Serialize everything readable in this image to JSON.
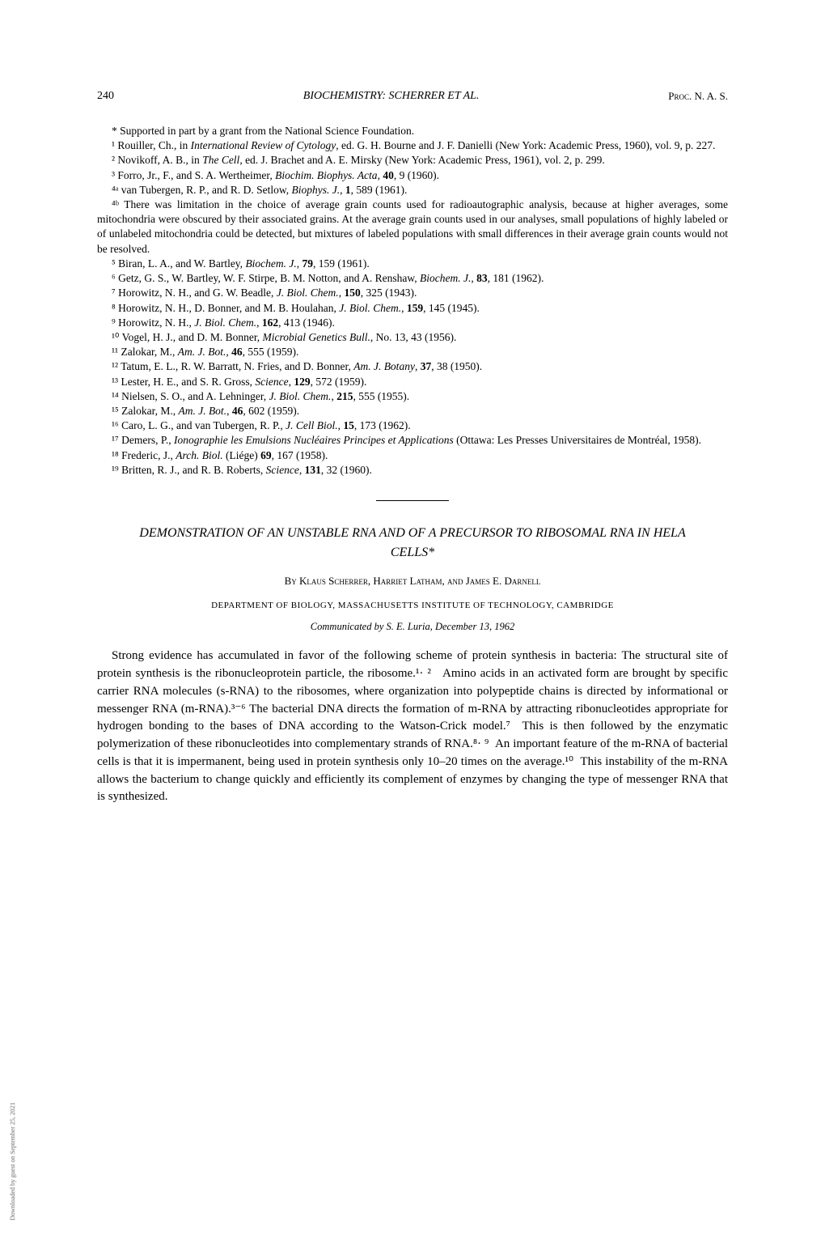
{
  "header": {
    "page_number": "240",
    "center": "BIOCHEMISTRY: SCHERRER ET AL.",
    "right": "Proc. N. A. S."
  },
  "footnote_star": "* Supported in part by a grant from the National Science Foundation.",
  "references": {
    "r1": "¹ Rouiller, Ch., in <i>International Review of Cytology</i>, ed. G. H. Bourne and J. F. Danielli (New York: Academic Press, 1960), vol. 9, p. 227.",
    "r2": "² Novikoff, A. B., in <i>The Cell</i>, ed. J. Brachet and A. E. Mirsky (New York: Academic Press, 1961), vol. 2, p. 299.",
    "r3": "³ Forro, Jr., F., and S. A. Wertheimer, <i>Biochim. Biophys. Acta</i>, <b>40</b>, 9 (1960).",
    "r4a": "⁴ᵃ van Tubergen, R. P., and R. D. Setlow, <i>Biophys. J.</i>, <b>1</b>, 589 (1961).",
    "r4b": "⁴ᵇ There was limitation in the choice of average grain counts used for radioautographic analysis, because at higher averages, some mitochondria were obscured by their associated grains. At the average grain counts used in our analyses, small populations of highly labeled or of unlabeled mitochondria could be detected, but mixtures of labeled populations with small differences in their average grain counts would not be resolved.",
    "r5": "⁵ Biran, L. A., and W. Bartley, <i>Biochem. J.</i>, <b>79</b>, 159 (1961).",
    "r6": "⁶ Getz, G. S., W. Bartley, W. F. Stirpe, B. M. Notton, and A. Renshaw, <i>Biochem. J.</i>, <b>83</b>, 181 (1962).",
    "r7": "⁷ Horowitz, N. H., and G. W. Beadle, <i>J. Biol. Chem.</i>, <b>150</b>, 325 (1943).",
    "r8": "⁸ Horowitz, N. H., D. Bonner, and M. B. Houlahan, <i>J. Biol. Chem.</i>, <b>159</b>, 145 (1945).",
    "r9": "⁹ Horowitz, N. H., <i>J. Biol. Chem.</i>, <b>162</b>, 413 (1946).",
    "r10": "¹⁰ Vogel, H. J., and D. M. Bonner, <i>Microbial Genetics Bull.</i>, No. 13, 43 (1956).",
    "r11": "¹¹ Zalokar, M., <i>Am. J. Bot.</i>, <b>46</b>, 555 (1959).",
    "r12": "¹² Tatum, E. L., R. W. Barratt, N. Fries, and D. Bonner, <i>Am. J. Botany</i>, <b>37</b>, 38 (1950).",
    "r13": "¹³ Lester, H. E., and S. R. Gross, <i>Science</i>, <b>129</b>, 572 (1959).",
    "r14": "¹⁴ Nielsen, S. O., and A. Lehninger, <i>J. Biol. Chem.</i>, <b>215</b>, 555 (1955).",
    "r15": "¹⁵ Zalokar, M., <i>Am. J. Bot.</i>, <b>46</b>, 602 (1959).",
    "r16": "¹⁶ Caro, L. G., and van Tubergen, R. P., <i>J. Cell Biol.</i>, <b>15</b>, 173 (1962).",
    "r17": "¹⁷ Demers, P., <i>Ionographie les Emulsions Nucléaires Principes et Applications</i> (Ottawa: Les Presses Universitaires de Montréal, 1958).",
    "r18": "¹⁸ Frederic, J., <i>Arch. Biol.</i> (Liége) <b>69</b>, 167 (1958).",
    "r19": "¹⁹ Britten, R. J., and R. B. Roberts, <i>Science</i>, <b>131</b>, 32 (1960)."
  },
  "article": {
    "title": "DEMONSTRATION OF AN UNSTABLE RNA AND OF A PRECURSOR TO RIBOSOMAL RNA IN HELA CELLS*",
    "authors": "By Klaus Scherrer, Harriet Latham, and James E. Darnell",
    "department": "DEPARTMENT OF BIOLOGY, MASSACHUSETTS INSTITUTE OF TECHNOLOGY, CAMBRIDGE",
    "communicated": "Communicated by S. E. Luria, December 13, 1962",
    "body": "Strong evidence has accumulated in favor of the following scheme of protein synthesis in bacteria: The structural site of protein synthesis is the ribonucleoprotein particle, the ribosome.¹·&nbsp;² &nbsp; Amino acids in an activated form are brought by specific carrier RNA molecules (s-RNA) to the ribosomes, where organization into polypeptide chains is directed by informational or messenger RNA (m-RNA).³⁻⁶ The bacterial DNA directs the formation of m-RNA by attracting ribonucleotides appropriate for hydrogen bonding to the bases of DNA according to the Watson-Crick model.⁷ &nbsp;This is then followed by the enzymatic polymerization of these ribonucleotides into complementary strands of RNA.⁸·&nbsp;⁹ &nbsp;An important feature of the m-RNA of bacterial cells is that it is impermanent, being used in protein synthesis only 10–20 times on the average.¹⁰ &nbsp;This instability of the m-RNA allows the bacterium to change quickly and efficiently its complement of enzymes by changing the type of messenger RNA that is synthesized."
  },
  "side": "Downloaded by guest on September 25, 2021"
}
